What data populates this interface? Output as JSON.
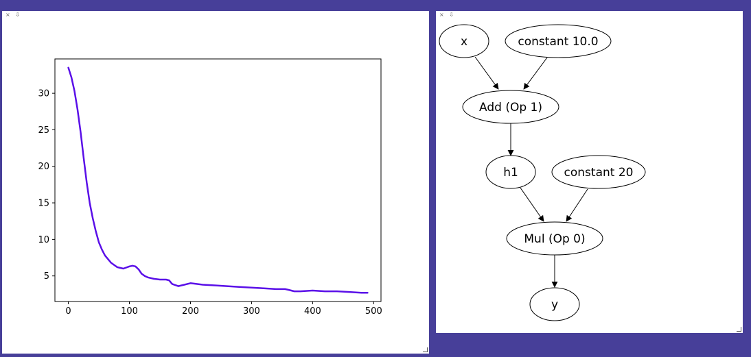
{
  "left_panel": {
    "close_label": "×",
    "pin_label": "⇩"
  },
  "right_panel": {
    "close_label": "×",
    "pin_label": "⇩"
  },
  "chart_data": {
    "type": "line",
    "title": "",
    "xlabel": "",
    "ylabel": "",
    "xlim": [
      -22,
      512
    ],
    "ylim": [
      1.5,
      34.7
    ],
    "xticks": [
      0,
      100,
      200,
      300,
      400,
      500
    ],
    "yticks": [
      5,
      10,
      15,
      20,
      25,
      30
    ],
    "grid": false,
    "series": [
      {
        "color": "#5a0fe8",
        "x": [
          0,
          5,
          10,
          15,
          20,
          25,
          30,
          35,
          40,
          45,
          50,
          55,
          60,
          70,
          80,
          90,
          100,
          105,
          110,
          115,
          120,
          125,
          130,
          140,
          150,
          160,
          165,
          170,
          180,
          190,
          200,
          210,
          220,
          240,
          260,
          280,
          300,
          320,
          340,
          355,
          360,
          370,
          380,
          400,
          420,
          440,
          460,
          480,
          490
        ],
        "y": [
          33.5,
          32.2,
          30.3,
          27.8,
          24.7,
          21.2,
          17.8,
          15.0,
          12.9,
          11.1,
          9.6,
          8.6,
          7.8,
          6.8,
          6.2,
          6.0,
          6.3,
          6.4,
          6.3,
          5.9,
          5.3,
          5.0,
          4.8,
          4.6,
          4.5,
          4.5,
          4.4,
          3.9,
          3.6,
          3.8,
          4.0,
          3.9,
          3.8,
          3.7,
          3.6,
          3.5,
          3.4,
          3.3,
          3.2,
          3.2,
          3.1,
          2.9,
          2.9,
          3.0,
          2.9,
          2.9,
          2.8,
          2.7,
          2.7
        ]
      }
    ]
  },
  "graph": {
    "nodes": {
      "x": "x",
      "c10": "constant 10.0",
      "add": "Add (Op 1)",
      "h1": "h1",
      "c20": "constant 20",
      "mul": "Mul (Op 0)",
      "y": "y"
    }
  }
}
